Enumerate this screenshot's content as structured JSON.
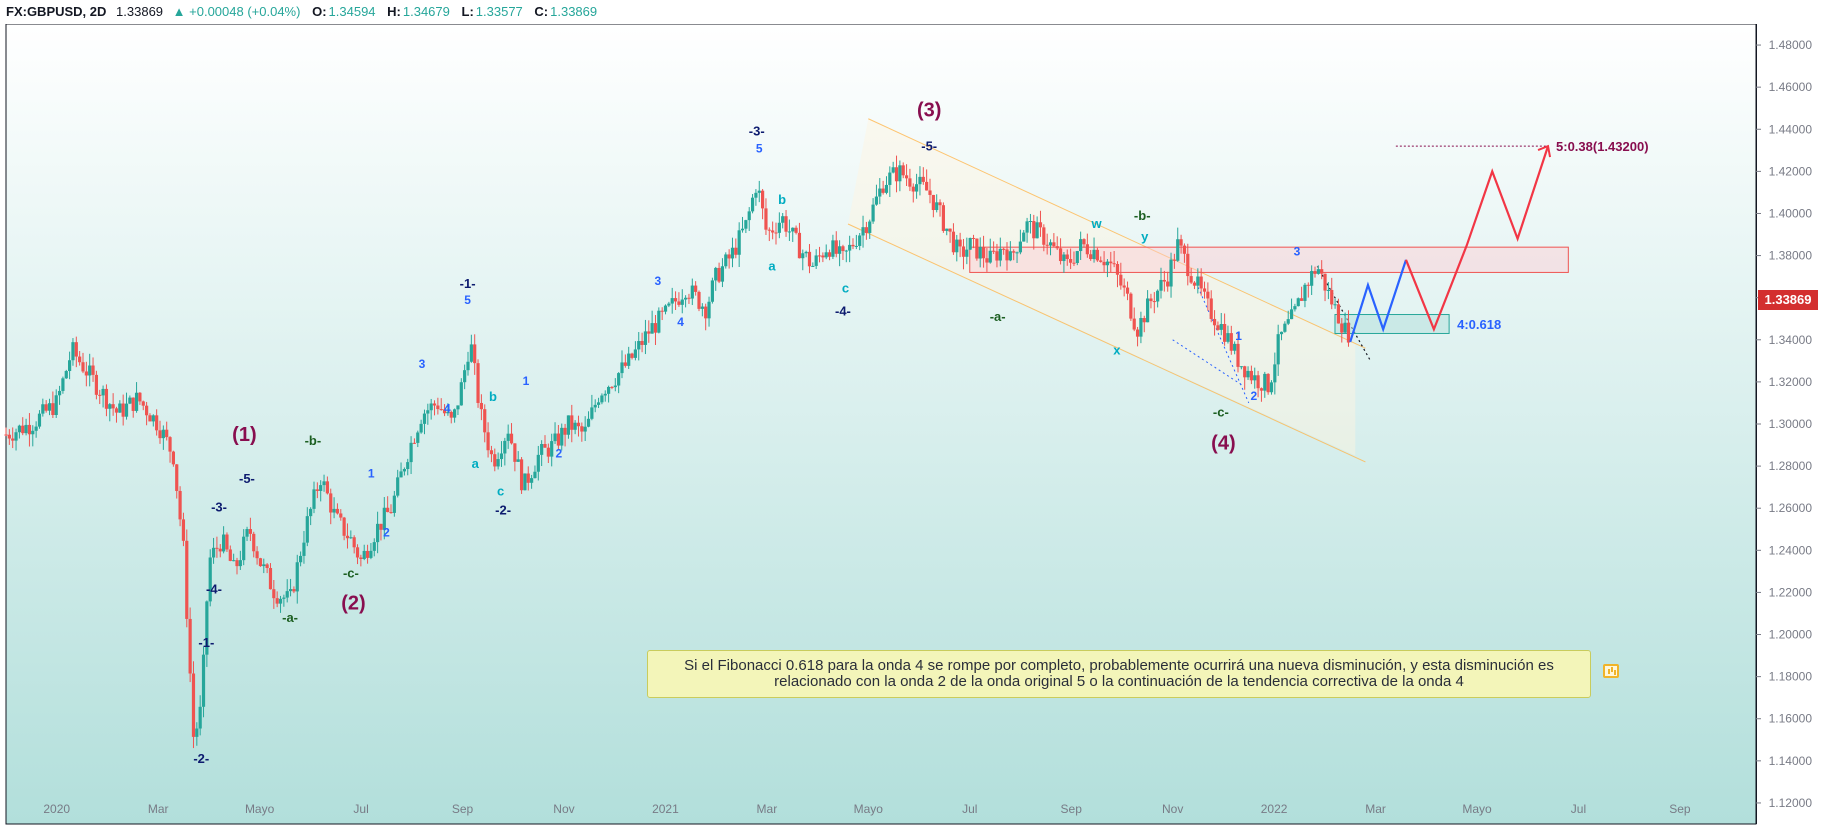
{
  "header": {
    "symbol": "FX:GBPUSD, 2D",
    "last": "1.33869",
    "change": "▲ +0.00048 (+0.04%)",
    "o_label": "O:",
    "o_value": "1.34594",
    "h_label": "H:",
    "h_value": "1.34679",
    "l_label": "L:",
    "l_value": "1.33577",
    "c_label": "C:",
    "c_value": "1.33869"
  },
  "price_tag": "1.33869",
  "note": "Si el Fibonacci 0.618 para la onda 4 se rompe por completo, probablemente ocurrirá una nueva disminución, y esta disminución es relacionado con la onda 2 de la onda original 5 o la continuación de la tendencia correctiva de la onda 4",
  "colors": {
    "up": "#26a69a",
    "down": "#ef5350",
    "projection_blue": "#2962ff",
    "projection_red": "#f23645",
    "bg_top": "#ffffff",
    "bg_bottom": "#b2dfdb"
  },
  "chart_data": {
    "type": "candlestick",
    "symbol": "GBPUSD",
    "timeframe": "2D",
    "ylim": [
      1.11,
      1.49
    ],
    "y_ticks": [
      "1.12000",
      "1.14000",
      "1.16000",
      "1.18000",
      "1.20000",
      "1.22000",
      "1.24000",
      "1.26000",
      "1.28000",
      "1.30000",
      "1.32000",
      "1.34000",
      "1.36000",
      "1.38000",
      "1.40000",
      "1.42000",
      "1.44000",
      "1.46000",
      "1.48000"
    ],
    "x_ticks": [
      "2020",
      "Mar",
      "Mayo",
      "Jul",
      "Sep",
      "Nov",
      "2021",
      "Mar",
      "Mayo",
      "Jul",
      "Sep",
      "Nov",
      "2022",
      "Mar",
      "Mayo",
      "Jul",
      "Sep"
    ],
    "x_tick_index": [
      0,
      2,
      4,
      6,
      8,
      10,
      12,
      14,
      16,
      18,
      20,
      22,
      24,
      26,
      28,
      30,
      32
    ],
    "x_months_range": [
      -1.0,
      33.5
    ],
    "price_path": [
      [
        -1.0,
        1.295
      ],
      [
        -0.5,
        1.3
      ],
      [
        0.0,
        1.31
      ],
      [
        0.3,
        1.335
      ],
      [
        0.8,
        1.318
      ],
      [
        1.2,
        1.305
      ],
      [
        1.6,
        1.312
      ],
      [
        2.0,
        1.3
      ],
      [
        2.3,
        1.285
      ],
      [
        2.5,
        1.24
      ],
      [
        2.7,
        1.15
      ],
      [
        2.85,
        1.165
      ],
      [
        3.0,
        1.235
      ],
      [
        3.25,
        1.245
      ],
      [
        3.5,
        1.23
      ],
      [
        3.8,
        1.25
      ],
      [
        4.0,
        1.235
      ],
      [
        4.3,
        1.22
      ],
      [
        4.6,
        1.216
      ],
      [
        4.9,
        1.25
      ],
      [
        5.2,
        1.275
      ],
      [
        5.5,
        1.255
      ],
      [
        5.8,
        1.245
      ],
      [
        6.0,
        1.235
      ],
      [
        6.3,
        1.25
      ],
      [
        6.6,
        1.26
      ],
      [
        6.9,
        1.285
      ],
      [
        7.2,
        1.305
      ],
      [
        7.5,
        1.31
      ],
      [
        7.8,
        1.3
      ],
      [
        8.0,
        1.32
      ],
      [
        8.15,
        1.34
      ],
      [
        8.35,
        1.305
      ],
      [
        8.6,
        1.282
      ],
      [
        8.9,
        1.298
      ],
      [
        9.2,
        1.27
      ],
      [
        9.5,
        1.285
      ],
      [
        9.8,
        1.29
      ],
      [
        10.1,
        1.3
      ],
      [
        10.4,
        1.295
      ],
      [
        10.7,
        1.315
      ],
      [
        11.0,
        1.322
      ],
      [
        11.3,
        1.33
      ],
      [
        11.7,
        1.345
      ],
      [
        12.0,
        1.352
      ],
      [
        12.4,
        1.365
      ],
      [
        12.8,
        1.355
      ],
      [
        13.0,
        1.37
      ],
      [
        13.3,
        1.38
      ],
      [
        13.6,
        1.395
      ],
      [
        13.8,
        1.415
      ],
      [
        14.0,
        1.39
      ],
      [
        14.3,
        1.398
      ],
      [
        14.6,
        1.385
      ],
      [
        14.9,
        1.375
      ],
      [
        15.2,
        1.385
      ],
      [
        15.5,
        1.378
      ],
      [
        15.8,
        1.39
      ],
      [
        16.0,
        1.397
      ],
      [
        16.3,
        1.415
      ],
      [
        16.6,
        1.42
      ],
      [
        16.9,
        1.415
      ],
      [
        17.2,
        1.41
      ],
      [
        17.5,
        1.395
      ],
      [
        17.8,
        1.38
      ],
      [
        18.0,
        1.385
      ],
      [
        18.4,
        1.378
      ],
      [
        18.7,
        1.385
      ],
      [
        18.8,
        1.378
      ],
      [
        19.1,
        1.395
      ],
      [
        19.5,
        1.388
      ],
      [
        19.9,
        1.375
      ],
      [
        20.2,
        1.385
      ],
      [
        20.5,
        1.382
      ],
      [
        20.8,
        1.375
      ],
      [
        21.1,
        1.36
      ],
      [
        21.3,
        1.345
      ],
      [
        21.6,
        1.36
      ],
      [
        21.9,
        1.37
      ],
      [
        22.1,
        1.385
      ],
      [
        22.4,
        1.37
      ],
      [
        22.7,
        1.355
      ],
      [
        23.0,
        1.345
      ],
      [
        23.3,
        1.33
      ],
      [
        23.6,
        1.322
      ],
      [
        23.9,
        1.318
      ],
      [
        24.1,
        1.34
      ],
      [
        24.4,
        1.352
      ],
      [
        24.6,
        1.365
      ],
      [
        24.85,
        1.375
      ],
      [
        25.1,
        1.36
      ],
      [
        25.3,
        1.35
      ],
      [
        25.5,
        1.339
      ]
    ],
    "projection_blue": [
      [
        25.5,
        1.339
      ],
      [
        25.85,
        1.366
      ],
      [
        26.15,
        1.345
      ],
      [
        26.6,
        1.378
      ]
    ],
    "projection_red": [
      [
        26.6,
        1.378
      ],
      [
        27.15,
        1.345
      ],
      [
        27.8,
        1.385
      ],
      [
        28.3,
        1.42
      ],
      [
        28.8,
        1.388
      ],
      [
        29.4,
        1.432
      ]
    ],
    "target_label": "5:0.38(1.43200)",
    "target_level": 1.432,
    "fib_label": "4:0.618",
    "fib_zone": [
      1.343,
      1.352
    ],
    "resistance_zone": [
      1.372,
      1.384
    ],
    "wave_labels": [
      {
        "t": "(1)",
        "x": 3.7,
        "y": 1.292,
        "c": "#880e4f",
        "s": 20
      },
      {
        "t": "-5-",
        "x": 3.75,
        "y": 1.272,
        "c": "#0d1b6f",
        "s": 13
      },
      {
        "t": "-3-",
        "x": 3.2,
        "y": 1.2585,
        "c": "#0d1b6f",
        "s": 13
      },
      {
        "t": "-4-",
        "x": 3.1,
        "y": 1.2195,
        "c": "#0d1b6f",
        "s": 13
      },
      {
        "t": "-1-",
        "x": 2.95,
        "y": 1.194,
        "c": "#0d1b6f",
        "s": 13
      },
      {
        "t": "-2-",
        "x": 2.85,
        "y": 1.139,
        "c": "#0d1b6f",
        "s": 13
      },
      {
        "t": "-b-",
        "x": 5.05,
        "y": 1.29,
        "c": "#1b5e20",
        "s": 13
      },
      {
        "t": "-c-",
        "x": 5.8,
        "y": 1.227,
        "c": "#1b5e20",
        "s": 13
      },
      {
        "t": "(2)",
        "x": 5.85,
        "y": 1.212,
        "c": "#880e4f",
        "s": 20
      },
      {
        "t": "-a-",
        "x": 4.6,
        "y": 1.206,
        "c": "#1b5e20",
        "s": 13
      },
      {
        "t": "1",
        "x": 6.2,
        "y": 1.2745,
        "c": "#2962ff",
        "s": 12
      },
      {
        "t": "2",
        "x": 6.5,
        "y": 1.2465,
        "c": "#2962ff",
        "s": 12
      },
      {
        "t": "3",
        "x": 7.2,
        "y": 1.3265,
        "c": "#2962ff",
        "s": 12
      },
      {
        "t": "4",
        "x": 7.7,
        "y": 1.3055,
        "c": "#2962ff",
        "s": 12
      },
      {
        "t": "-1-",
        "x": 8.1,
        "y": 1.3645,
        "c": "#0d1b6f",
        "s": 13
      },
      {
        "t": "5",
        "x": 8.1,
        "y": 1.357,
        "c": "#2962ff",
        "s": 12
      },
      {
        "t": "b",
        "x": 8.6,
        "y": 1.311,
        "c": "#00acc1",
        "s": 13
      },
      {
        "t": "a",
        "x": 8.25,
        "y": 1.279,
        "c": "#00acc1",
        "s": 13
      },
      {
        "t": "c",
        "x": 8.75,
        "y": 1.266,
        "c": "#00acc1",
        "s": 13
      },
      {
        "t": "-2-",
        "x": 8.8,
        "y": 1.257,
        "c": "#0d1b6f",
        "s": 13
      },
      {
        "t": "1",
        "x": 9.25,
        "y": 1.3185,
        "c": "#2962ff",
        "s": 12
      },
      {
        "t": "2",
        "x": 9.9,
        "y": 1.284,
        "c": "#2962ff",
        "s": 12
      },
      {
        "t": "3",
        "x": 11.85,
        "y": 1.366,
        "c": "#2962ff",
        "s": 12
      },
      {
        "t": "4",
        "x": 12.3,
        "y": 1.3465,
        "c": "#2962ff",
        "s": 12
      },
      {
        "t": "-3-",
        "x": 13.8,
        "y": 1.437,
        "c": "#0d1b6f",
        "s": 13
      },
      {
        "t": "5",
        "x": 13.85,
        "y": 1.429,
        "c": "#2962ff",
        "s": 12
      },
      {
        "t": "b",
        "x": 14.3,
        "y": 1.4045,
        "c": "#00acc1",
        "s": 13
      },
      {
        "t": "a",
        "x": 14.1,
        "y": 1.373,
        "c": "#00acc1",
        "s": 13
      },
      {
        "t": "c",
        "x": 15.55,
        "y": 1.3625,
        "c": "#00acc1",
        "s": 13
      },
      {
        "t": "-4-",
        "x": 15.5,
        "y": 1.3515,
        "c": "#0d1b6f",
        "s": 13
      },
      {
        "t": "(3)",
        "x": 17.2,
        "y": 1.446,
        "c": "#880e4f",
        "s": 20
      },
      {
        "t": "-5-",
        "x": 17.2,
        "y": 1.43,
        "c": "#0d1b6f",
        "s": 13
      },
      {
        "t": "w",
        "x": 20.5,
        "y": 1.393,
        "c": "#00acc1",
        "s": 13
      },
      {
        "t": "-b-",
        "x": 21.4,
        "y": 1.397,
        "c": "#1b5e20",
        "s": 13
      },
      {
        "t": "y",
        "x": 21.45,
        "y": 1.387,
        "c": "#00acc1",
        "s": 13
      },
      {
        "t": "-a-",
        "x": 18.55,
        "y": 1.349,
        "c": "#1b5e20",
        "s": 13
      },
      {
        "t": "x",
        "x": 20.9,
        "y": 1.333,
        "c": "#00acc1",
        "s": 13
      },
      {
        "t": "1",
        "x": 23.3,
        "y": 1.34,
        "c": "#2962ff",
        "s": 12
      },
      {
        "t": "2",
        "x": 23.6,
        "y": 1.3115,
        "c": "#2962ff",
        "s": 12
      },
      {
        "t": "-c-",
        "x": 22.95,
        "y": 1.3035,
        "c": "#1b5e20",
        "s": 13
      },
      {
        "t": "(4)",
        "x": 23.0,
        "y": 1.288,
        "c": "#880e4f",
        "s": 20
      },
      {
        "t": "3",
        "x": 24.45,
        "y": 1.38,
        "c": "#2962ff",
        "s": 12
      }
    ]
  }
}
